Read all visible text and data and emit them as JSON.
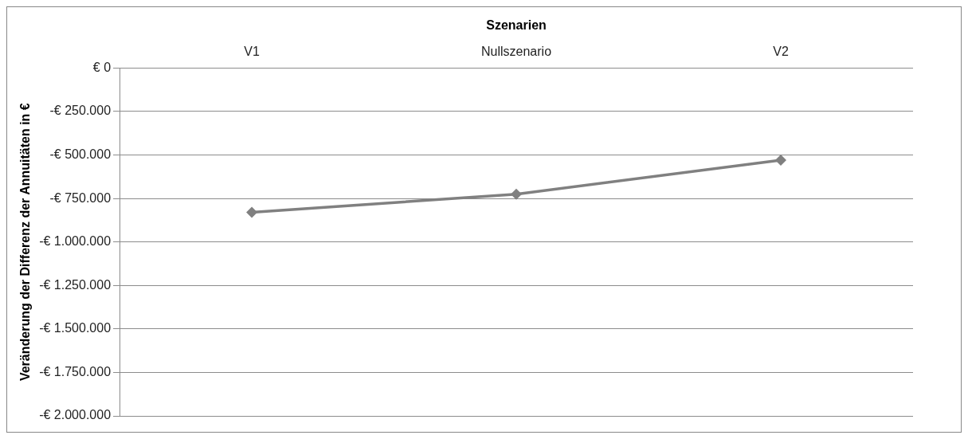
{
  "chart_data": {
    "type": "line",
    "xlabel": "Szenarien",
    "ylabel": "Veränderung der Differenz der Annuitäten in €",
    "categories": [
      "V1",
      "Nullszenario",
      "V2"
    ],
    "series": [
      {
        "color": "#808080",
        "values": [
          -830000,
          -725000,
          -530000
        ]
      }
    ],
    "ylim": [
      -2000000,
      0
    ],
    "yticks": [
      {
        "value": 0,
        "label": "€ 0"
      },
      {
        "value": -250000,
        "label": "-€ 250.000"
      },
      {
        "value": -500000,
        "label": "-€ 500.000"
      },
      {
        "value": -750000,
        "label": "-€ 750.000"
      },
      {
        "value": -1000000,
        "label": "-€ 1.000.000"
      },
      {
        "value": -1250000,
        "label": "-€ 1.250.000"
      },
      {
        "value": -1500000,
        "label": "-€ 1.500.000"
      },
      {
        "value": -1750000,
        "label": "-€ 1.750.000"
      },
      {
        "value": -2000000,
        "label": "-€ 2.000.000"
      }
    ],
    "grid": "y",
    "marker": "diamond",
    "legend": false
  }
}
